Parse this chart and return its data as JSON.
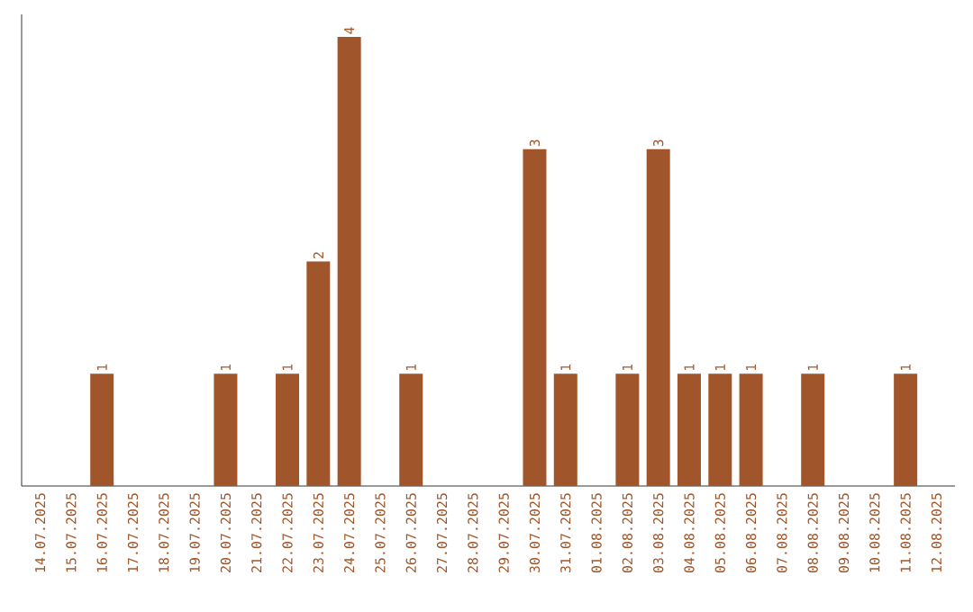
{
  "chart_data": {
    "type": "bar",
    "categories": [
      "14.07.2025",
      "15.07.2025",
      "16.07.2025",
      "17.07.2025",
      "18.07.2025",
      "19.07.2025",
      "20.07.2025",
      "21.07.2025",
      "22.07.2025",
      "23.07.2025",
      "24.07.2025",
      "25.07.2025",
      "26.07.2025",
      "27.07.2025",
      "28.07.2025",
      "29.07.2025",
      "30.07.2025",
      "31.07.2025",
      "01.08.2025",
      "02.08.2025",
      "03.08.2025",
      "04.08.2025",
      "05.08.2025",
      "06.08.2025",
      "07.08.2025",
      "08.08.2025",
      "09.08.2025",
      "10.08.2025",
      "11.08.2025",
      "12.08.2025"
    ],
    "values": [
      0,
      0,
      1,
      0,
      0,
      0,
      1,
      0,
      1,
      2,
      4,
      0,
      1,
      0,
      0,
      0,
      3,
      1,
      0,
      1,
      3,
      1,
      1,
      1,
      0,
      1,
      0,
      0,
      1,
      0
    ],
    "value_labels": [
      null,
      null,
      "1",
      null,
      null,
      null,
      "1",
      null,
      "1",
      "2",
      "4",
      null,
      "1",
      null,
      null,
      null,
      "3",
      "1",
      null,
      "1",
      "3",
      "1",
      "1",
      "1",
      null,
      "1",
      null,
      null,
      "1",
      null
    ],
    "color": "#a0562a",
    "ylim": [
      0,
      4.2
    ],
    "tick_labels": "x"
  }
}
